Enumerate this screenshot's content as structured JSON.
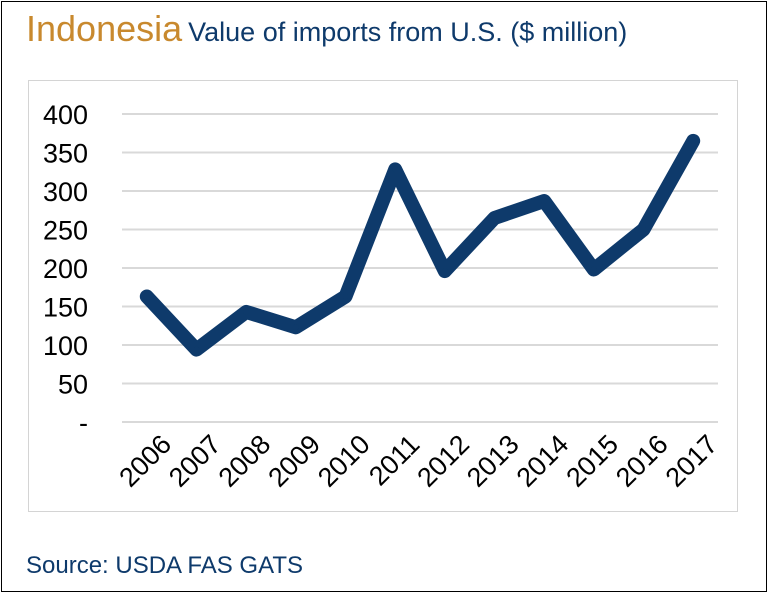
{
  "title": {
    "country": "Indonesia",
    "subtitle": "Value of imports from U.S. ($ million)"
  },
  "source": "Source: USDA FAS GATS",
  "chart_data": {
    "type": "line",
    "title": "Indonesia Value of imports from U.S. ($ million)",
    "x": [
      "2006",
      "2007",
      "2008",
      "2009",
      "2010",
      "2011",
      "2012",
      "2013",
      "2014",
      "2015",
      "2016",
      "2017"
    ],
    "series": [
      {
        "values": [
          163,
          94,
          143,
          123,
          163,
          328,
          196,
          265,
          287,
          198,
          250,
          365
        ]
      }
    ],
    "y_ticks": [
      {
        "value": 0,
        "label": "-"
      },
      {
        "value": 50,
        "label": "50"
      },
      {
        "value": 100,
        "label": "100"
      },
      {
        "value": 150,
        "label": "150"
      },
      {
        "value": 200,
        "label": "200"
      },
      {
        "value": 250,
        "label": "250"
      },
      {
        "value": 300,
        "label": "300"
      },
      {
        "value": 350,
        "label": "350"
      },
      {
        "value": 400,
        "label": "400"
      }
    ],
    "ylim": [
      0,
      400
    ],
    "grid": true,
    "line_color": "#0e3a6b",
    "grid_color": "#d9d9d9"
  }
}
